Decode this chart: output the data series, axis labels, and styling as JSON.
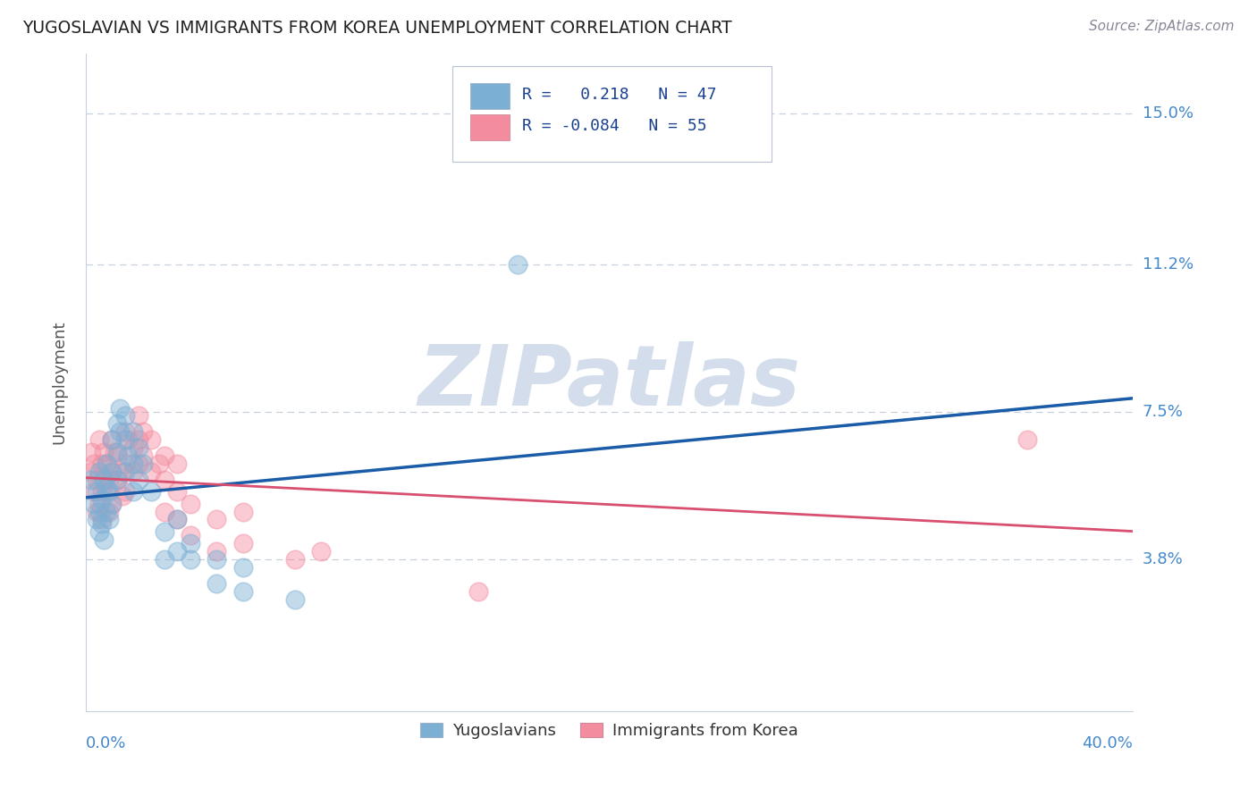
{
  "title": "YUGOSLAVIAN VS IMMIGRANTS FROM KOREA UNEMPLOYMENT CORRELATION CHART",
  "source": "Source: ZipAtlas.com",
  "ylabel": "Unemployment",
  "ytick_labels": [
    "15.0%",
    "11.2%",
    "7.5%",
    "3.8%"
  ],
  "ytick_values": [
    0.15,
    0.112,
    0.075,
    0.038
  ],
  "xlim": [
    0.0,
    0.4
  ],
  "ylim": [
    0.0,
    0.165
  ],
  "yug_color": "#7bafd4",
  "kor_color": "#f48ca0",
  "yug_line_color": "#1a5ca8",
  "kor_line_color": "#d94f70",
  "watermark": "ZIPatlas",
  "watermark_color": "#cdd8e8",
  "grid_color": "#c8d0dc",
  "background_color": "#ffffff",
  "yug_scatter": [
    [
      0.002,
      0.058
    ],
    [
      0.003,
      0.052
    ],
    [
      0.004,
      0.048
    ],
    [
      0.004,
      0.055
    ],
    [
      0.005,
      0.045
    ],
    [
      0.005,
      0.05
    ],
    [
      0.005,
      0.06
    ],
    [
      0.006,
      0.047
    ],
    [
      0.006,
      0.053
    ],
    [
      0.007,
      0.043
    ],
    [
      0.007,
      0.058
    ],
    [
      0.008,
      0.05
    ],
    [
      0.008,
      0.056
    ],
    [
      0.008,
      0.062
    ],
    [
      0.009,
      0.048
    ],
    [
      0.009,
      0.055
    ],
    [
      0.01,
      0.052
    ],
    [
      0.01,
      0.06
    ],
    [
      0.01,
      0.068
    ],
    [
      0.012,
      0.058
    ],
    [
      0.012,
      0.065
    ],
    [
      0.012,
      0.072
    ],
    [
      0.013,
      0.07
    ],
    [
      0.013,
      0.076
    ],
    [
      0.015,
      0.06
    ],
    [
      0.015,
      0.068
    ],
    [
      0.015,
      0.074
    ],
    [
      0.016,
      0.064
    ],
    [
      0.018,
      0.055
    ],
    [
      0.018,
      0.062
    ],
    [
      0.018,
      0.07
    ],
    [
      0.02,
      0.058
    ],
    [
      0.02,
      0.066
    ],
    [
      0.022,
      0.062
    ],
    [
      0.025,
      0.055
    ],
    [
      0.03,
      0.038
    ],
    [
      0.03,
      0.045
    ],
    [
      0.035,
      0.04
    ],
    [
      0.035,
      0.048
    ],
    [
      0.04,
      0.038
    ],
    [
      0.04,
      0.042
    ],
    [
      0.05,
      0.032
    ],
    [
      0.05,
      0.038
    ],
    [
      0.06,
      0.03
    ],
    [
      0.06,
      0.036
    ],
    [
      0.08,
      0.028
    ],
    [
      0.165,
      0.112
    ]
  ],
  "kor_scatter": [
    [
      0.002,
      0.06
    ],
    [
      0.002,
      0.065
    ],
    [
      0.003,
      0.055
    ],
    [
      0.003,
      0.062
    ],
    [
      0.004,
      0.05
    ],
    [
      0.004,
      0.058
    ],
    [
      0.005,
      0.052
    ],
    [
      0.005,
      0.068
    ],
    [
      0.006,
      0.048
    ],
    [
      0.006,
      0.055
    ],
    [
      0.006,
      0.062
    ],
    [
      0.007,
      0.058
    ],
    [
      0.007,
      0.065
    ],
    [
      0.008,
      0.055
    ],
    [
      0.008,
      0.062
    ],
    [
      0.009,
      0.05
    ],
    [
      0.009,
      0.058
    ],
    [
      0.01,
      0.052
    ],
    [
      0.01,
      0.06
    ],
    [
      0.01,
      0.068
    ],
    [
      0.011,
      0.065
    ],
    [
      0.012,
      0.058
    ],
    [
      0.012,
      0.064
    ],
    [
      0.014,
      0.054
    ],
    [
      0.014,
      0.06
    ],
    [
      0.015,
      0.055
    ],
    [
      0.015,
      0.062
    ],
    [
      0.015,
      0.07
    ],
    [
      0.016,
      0.068
    ],
    [
      0.018,
      0.06
    ],
    [
      0.018,
      0.066
    ],
    [
      0.02,
      0.062
    ],
    [
      0.02,
      0.068
    ],
    [
      0.02,
      0.074
    ],
    [
      0.022,
      0.064
    ],
    [
      0.022,
      0.07
    ],
    [
      0.025,
      0.06
    ],
    [
      0.025,
      0.068
    ],
    [
      0.028,
      0.062
    ],
    [
      0.03,
      0.05
    ],
    [
      0.03,
      0.058
    ],
    [
      0.03,
      0.064
    ],
    [
      0.035,
      0.048
    ],
    [
      0.035,
      0.055
    ],
    [
      0.035,
      0.062
    ],
    [
      0.04,
      0.044
    ],
    [
      0.04,
      0.052
    ],
    [
      0.05,
      0.04
    ],
    [
      0.05,
      0.048
    ],
    [
      0.06,
      0.042
    ],
    [
      0.06,
      0.05
    ],
    [
      0.08,
      0.038
    ],
    [
      0.09,
      0.04
    ],
    [
      0.15,
      0.03
    ],
    [
      0.36,
      0.068
    ]
  ]
}
